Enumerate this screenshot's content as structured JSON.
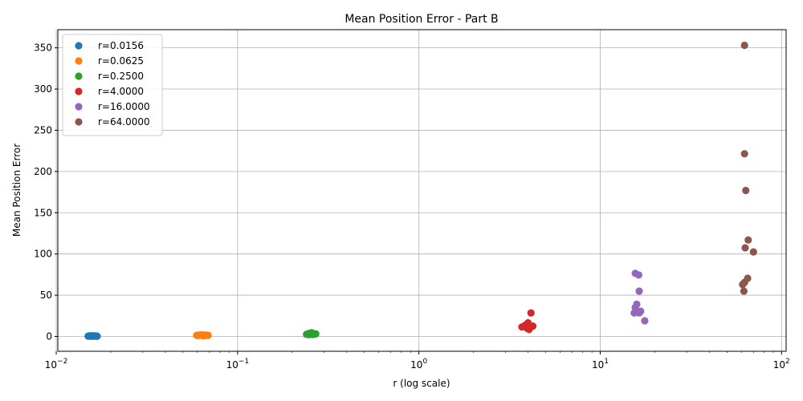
{
  "chart_data": {
    "type": "scatter",
    "title": "Mean Position Error - Part B",
    "xlabel": "r (log scale)",
    "ylabel": "Mean Position Error",
    "xscale": "log",
    "xlim": [
      0.0102,
      106
    ],
    "ylim": [
      -18,
      372
    ],
    "grid": true,
    "legend_position": "top-left",
    "x_ticks": [
      {
        "value": 0.01,
        "base": "10",
        "exp": "−2"
      },
      {
        "value": 0.1,
        "base": "10",
        "exp": "−1"
      },
      {
        "value": 1,
        "base": "10",
        "exp": "0"
      },
      {
        "value": 10,
        "base": "10",
        "exp": "1"
      },
      {
        "value": 100,
        "base": "10",
        "exp": "2"
      }
    ],
    "y_ticks": [
      0,
      50,
      100,
      150,
      200,
      250,
      300,
      350
    ],
    "series": [
      {
        "name": "r=0.0156",
        "color": "#1f77b4",
        "points": [
          [
            0.015,
            0.3
          ],
          [
            0.0152,
            0.6
          ],
          [
            0.0154,
            0.4
          ],
          [
            0.0156,
            0.8
          ],
          [
            0.0157,
            0.5
          ],
          [
            0.0158,
            0.2
          ],
          [
            0.016,
            0.7
          ],
          [
            0.0161,
            0.4
          ],
          [
            0.0163,
            0.6
          ],
          [
            0.0165,
            0.3
          ],
          [
            0.0167,
            0.5
          ],
          [
            0.0168,
            0.2
          ]
        ]
      },
      {
        "name": "r=0.0625",
        "color": "#ff7f0e",
        "points": [
          [
            0.0595,
            1.4
          ],
          [
            0.0605,
            1.1
          ],
          [
            0.0615,
            1.7
          ],
          [
            0.0625,
            1.3
          ],
          [
            0.0632,
            2.0
          ],
          [
            0.064,
            1.5
          ],
          [
            0.0648,
            1.0
          ],
          [
            0.0656,
            1.8
          ],
          [
            0.0662,
            1.2
          ],
          [
            0.0675,
            1.6
          ],
          [
            0.0688,
            1.3
          ]
        ]
      },
      {
        "name": "r=0.2500",
        "color": "#2ca02c",
        "points": [
          [
            0.24,
            2.5
          ],
          [
            0.244,
            3.2
          ],
          [
            0.248,
            2.2
          ],
          [
            0.25,
            3.8
          ],
          [
            0.253,
            2.8
          ],
          [
            0.256,
            4.5
          ],
          [
            0.259,
            2.4
          ],
          [
            0.262,
            3.4
          ],
          [
            0.265,
            2.7
          ],
          [
            0.27,
            3.1
          ]
        ]
      },
      {
        "name": "r=4.0000",
        "color": "#d62728",
        "points": [
          [
            3.7,
            11.5
          ],
          [
            3.85,
            13.5
          ],
          [
            3.95,
            10.0
          ],
          [
            4.0,
            16.5
          ],
          [
            4.05,
            8.5
          ],
          [
            4.15,
            28.5
          ],
          [
            4.25,
            12.5
          ]
        ]
      },
      {
        "name": "r=16.0000",
        "color": "#9467bd",
        "points": [
          [
            15.6,
            76.5
          ],
          [
            16.3,
            74.5
          ],
          [
            16.4,
            55.0
          ],
          [
            15.9,
            39.0
          ],
          [
            15.6,
            35.0
          ],
          [
            16.7,
            30.5
          ],
          [
            16.4,
            28.5
          ],
          [
            15.4,
            28.5
          ],
          [
            17.6,
            19.0
          ]
        ]
      },
      {
        "name": "r=64.0000",
        "color": "#8c564b",
        "points": [
          [
            62.5,
            353.0
          ],
          [
            62.5,
            221.5
          ],
          [
            63.5,
            177.0
          ],
          [
            65.5,
            117.0
          ],
          [
            63.0,
            107.5
          ],
          [
            70.0,
            102.5
          ],
          [
            65.0,
            70.5
          ],
          [
            62.5,
            65.5
          ],
          [
            61.0,
            63.0
          ],
          [
            62.0,
            55.0
          ]
        ]
      }
    ]
  }
}
